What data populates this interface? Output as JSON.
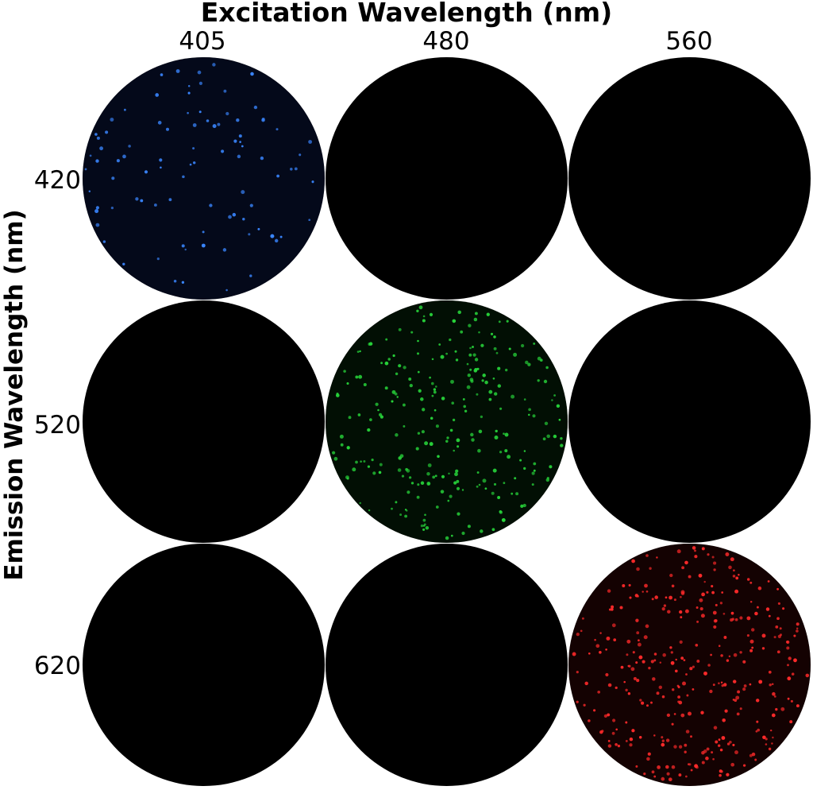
{
  "figure": {
    "x_axis_title": "Excitation Wavelength (nm)",
    "y_axis_title": "Emission Wavelength (nm)",
    "excitation_labels": [
      "405",
      "480",
      "560"
    ],
    "emission_labels": [
      "420",
      "520",
      "620"
    ]
  },
  "wells": [
    {
      "excitation": "405",
      "emission": "420",
      "signal": true,
      "dot_color": "#3a86ff",
      "glow_color": "#0b1a4a",
      "approx_spot_count": 90
    },
    {
      "excitation": "480",
      "emission": "420",
      "signal": false
    },
    {
      "excitation": "560",
      "emission": "420",
      "signal": false
    },
    {
      "excitation": "405",
      "emission": "520",
      "signal": false
    },
    {
      "excitation": "480",
      "emission": "520",
      "signal": true,
      "dot_color": "#27d43a",
      "glow_color": "#062a0c",
      "approx_spot_count": 260
    },
    {
      "excitation": "560",
      "emission": "520",
      "signal": false
    },
    {
      "excitation": "405",
      "emission": "620",
      "signal": false
    },
    {
      "excitation": "480",
      "emission": "620",
      "signal": false
    },
    {
      "excitation": "560",
      "emission": "620",
      "signal": true,
      "dot_color": "#ff2a2a",
      "glow_color": "#3a0606",
      "approx_spot_count": 330
    }
  ]
}
